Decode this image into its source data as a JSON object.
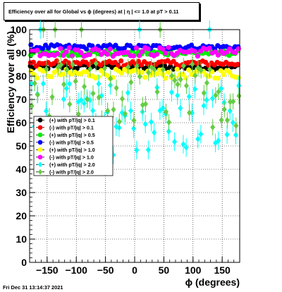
{
  "chart_data": {
    "type": "scatter",
    "title": "Efficiency over all for Global vs ϕ (degrees) at |  η | <= 1.0 at pT > 0.11",
    "xlabel": "ϕ (degrees)",
    "ylabel": "Efficiency over all (%)",
    "xlim": [
      -180,
      180
    ],
    "ylim": [
      0,
      100
    ],
    "x_ticks": [
      "−150",
      "−100",
      "−50",
      "0",
      "50",
      "100",
      "150"
    ],
    "y_ticks": [
      "0",
      "10",
      "20",
      "30",
      "40",
      "50",
      "60",
      "70",
      "80",
      "90",
      "100"
    ],
    "grid": true,
    "legend_position": "middle-left",
    "series": [
      {
        "name": "(+) with pT/|q| > 0.1",
        "color": "#000000",
        "marker": "circle",
        "level": 84,
        "spread": 1.2
      },
      {
        "name": "(-) with pT/|q| > 0.1",
        "color": "#ff0000",
        "marker": "circle",
        "level": 85.5,
        "spread": 1.2
      },
      {
        "name": "(+) with pT/|q| > 0.5",
        "color": "#00ee00",
        "marker": "circle",
        "level": 90,
        "spread": 1.2
      },
      {
        "name": "(-) with pT/|q| > 0.5",
        "color": "#0000ff",
        "marker": "circle",
        "level": 92.5,
        "spread": 1.0
      },
      {
        "name": "(+) with pT/|q| > 1.0",
        "color": "#ffff00",
        "marker": "circle",
        "level": 81,
        "spread": 2.0
      },
      {
        "name": "(-) with pT/|q| > 1.0",
        "color": "#ff00ff",
        "marker": "circle",
        "level": 90.5,
        "spread": 2.0
      },
      {
        "name": "(+) with pT/|q| > 2.0",
        "color": "#00ffff",
        "marker": "diamond",
        "level": 62,
        "spread": 16
      },
      {
        "name": "(-) with pT/|q| > 2.0",
        "color": "#66cc44",
        "marker": "diamond",
        "level": 72,
        "spread": 14
      }
    ]
  },
  "footer": "Fri Dec 31 13:14:37 2021"
}
